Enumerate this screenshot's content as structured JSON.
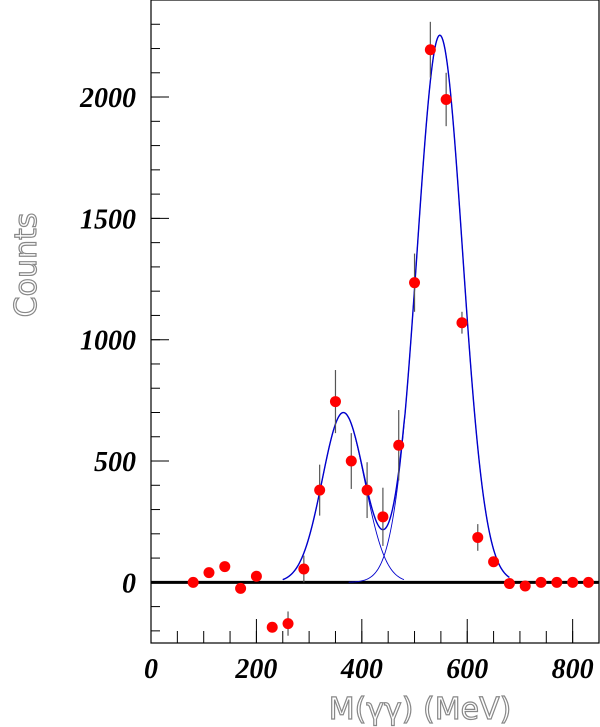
{
  "chart_data": {
    "type": "scatter",
    "title": "",
    "xlabel": "M(γγ)  (MeV)",
    "ylabel": "Counts",
    "xlim": [
      0,
      850
    ],
    "ylim": [
      -250,
      2400
    ],
    "xticks_major": [
      0,
      200,
      400,
      600,
      800
    ],
    "xticks_minor_step": 50,
    "yticks_major": [
      0,
      500,
      1000,
      1500,
      2000
    ],
    "yticks_minor_step": 100,
    "grid": false,
    "colors": {
      "points": "#ff0000",
      "fit": "#0000cc",
      "error_bars": "#555555",
      "zero_line": "#000000"
    },
    "series": [
      {
        "x": [
          80,
          110,
          140,
          170,
          200,
          230,
          260,
          290,
          320,
          350,
          380,
          410,
          440,
          470,
          500,
          530,
          560,
          590,
          620,
          650,
          680,
          710,
          740,
          770,
          800,
          830
        ],
        "y": [
          0,
          40,
          65,
          -25,
          25,
          -185,
          -170,
          55,
          380,
          745,
          500,
          380,
          270,
          565,
          1235,
          2195,
          1990,
          1070,
          185,
          85,
          -5,
          -15,
          0,
          0,
          0,
          0
        ],
        "yerr": [
          0,
          0,
          0,
          0,
          0,
          0,
          50,
          55,
          105,
          130,
          115,
          115,
          120,
          145,
          120,
          115,
          110,
          45,
          55,
          20,
          0,
          0,
          0,
          0,
          0,
          0
        ]
      }
    ],
    "fit_components": [
      {
        "shape": "gaussian",
        "amplitude": 700,
        "mean": 365,
        "sigma": 40,
        "x_range": [
          250,
          480
        ]
      },
      {
        "shape": "gaussian",
        "amplitude": 2255,
        "mean": 548,
        "sigma": 43,
        "x_range": [
          375,
          680
        ]
      }
    ]
  }
}
